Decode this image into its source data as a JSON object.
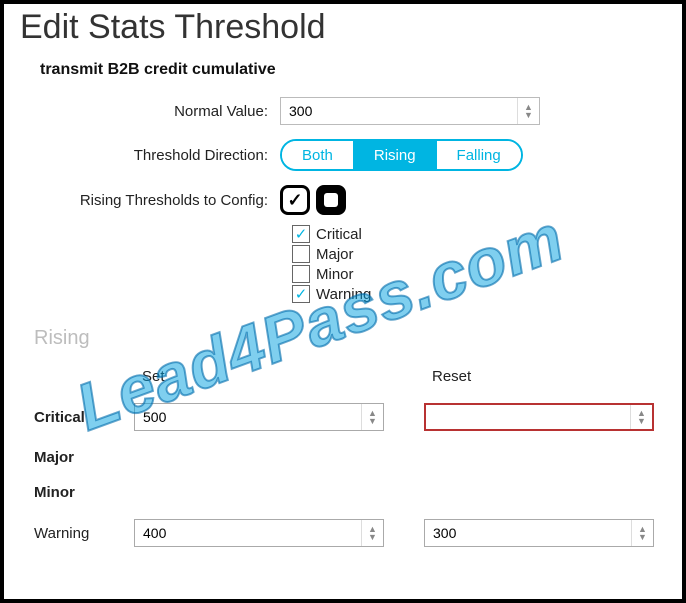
{
  "title": "Edit Stats Threshold",
  "subtitle": "transmit B2B credit cumulative",
  "labels": {
    "normal_value": "Normal Value:",
    "threshold_direction": "Threshold Direction:",
    "rising_to_config": "Rising Thresholds to Config:"
  },
  "normal_value": "300",
  "direction": {
    "options": [
      "Both",
      "Rising",
      "Falling"
    ],
    "active_index": 1
  },
  "config_checks": [
    {
      "label": "Critical",
      "checked": true
    },
    {
      "label": "Major",
      "checked": false
    },
    {
      "label": "Minor",
      "checked": false
    },
    {
      "label": "Warning",
      "checked": true
    }
  ],
  "section": "Rising",
  "columns": {
    "set": "Set",
    "reset": "Reset"
  },
  "rows": {
    "critical": {
      "label": "Critical",
      "set": "500",
      "reset": "",
      "reset_highlight": true,
      "has_inputs": true
    },
    "major": {
      "label": "Major",
      "has_inputs": false
    },
    "minor": {
      "label": "Minor",
      "has_inputs": false
    },
    "warning": {
      "label": "Warning",
      "set": "400",
      "reset": "300",
      "reset_highlight": false,
      "has_inputs": true
    }
  },
  "watermark": "Lead4Pass.com",
  "colors": {
    "accent": "#00b5e2",
    "border_dark": "#000000",
    "highlight_border": "#b83232",
    "muted_text": "#bdbdbd"
  }
}
